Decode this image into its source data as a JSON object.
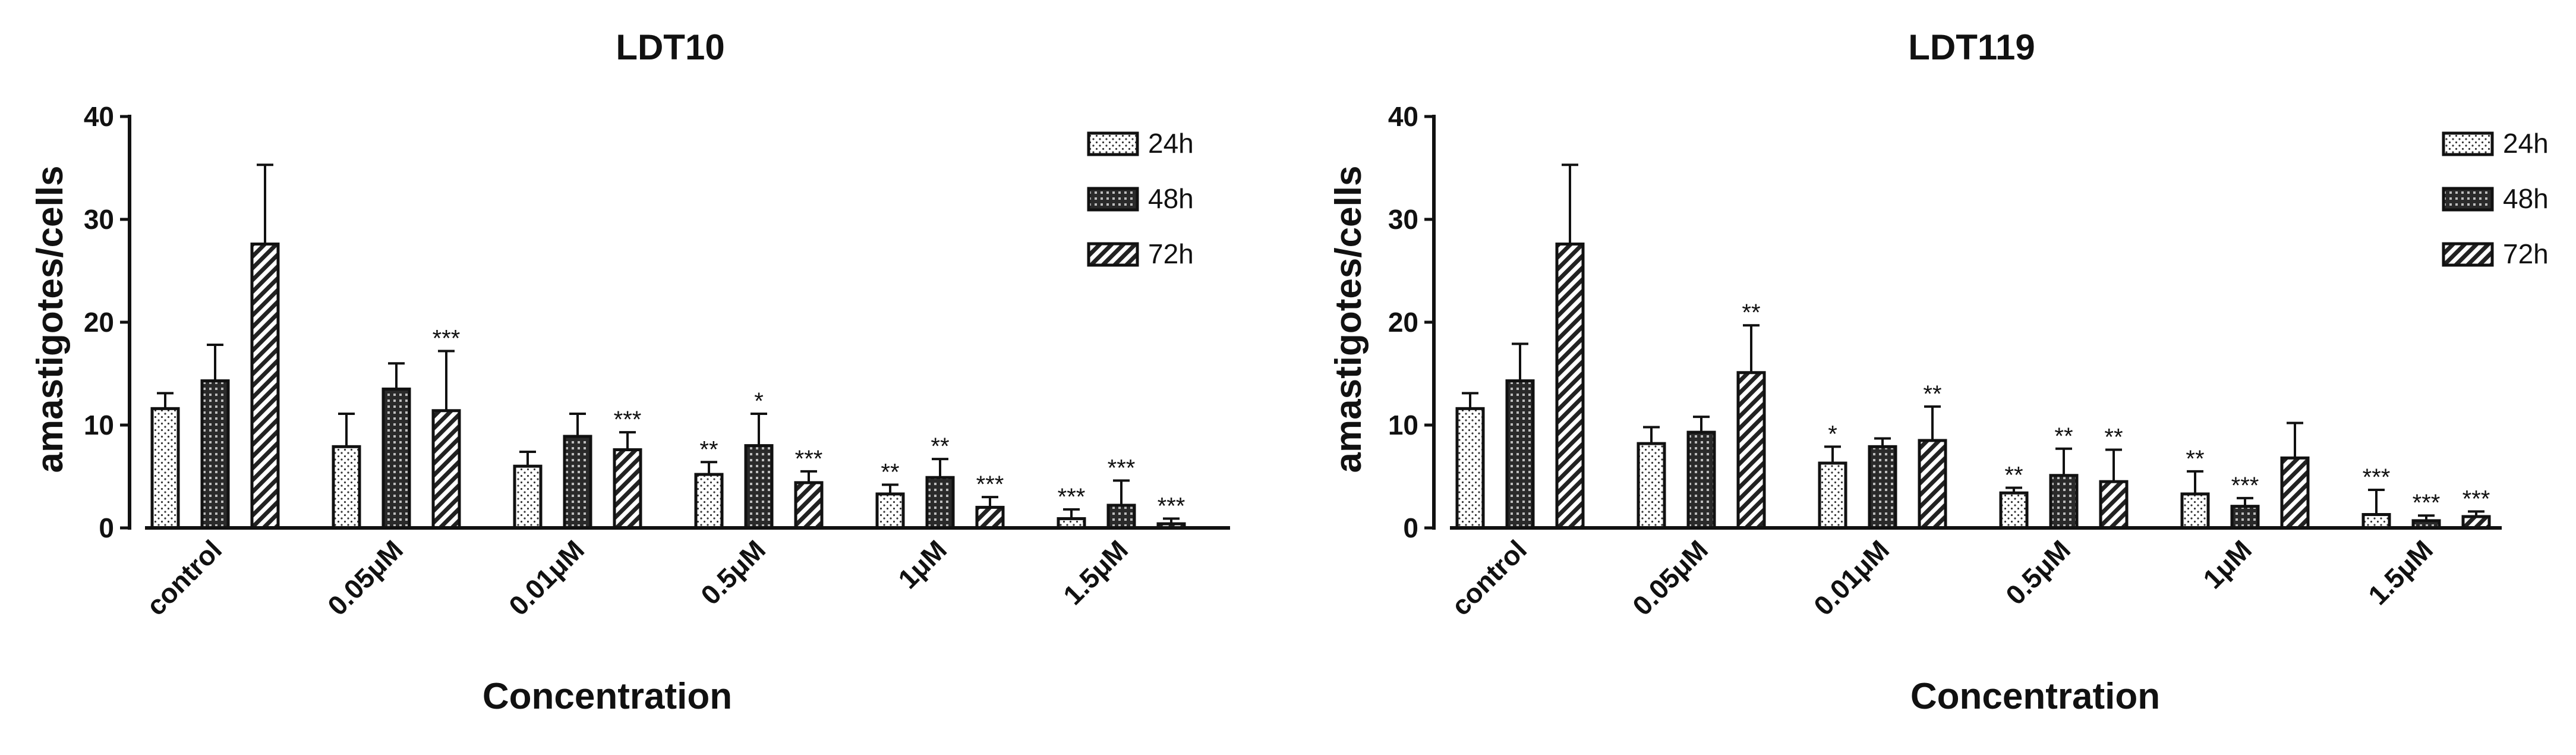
{
  "chart_data": [
    {
      "type": "bar",
      "title": "LDT10",
      "xlabel": "Concentration",
      "ylabel": "amastigotes/cells",
      "ylim": [
        0,
        40
      ],
      "yticks": [
        "0",
        "10",
        "20",
        "30",
        "40"
      ],
      "categories": [
        "control",
        "0.05μM",
        "0.01μM",
        "0.5μM",
        "1μM",
        "1.5μM"
      ],
      "legend_position": "top-right",
      "series": [
        {
          "name": "24h",
          "pattern": "dots",
          "values": [
            11.6,
            7.9,
            6.0,
            5.2,
            3.3,
            0.9
          ],
          "errors": [
            1.5,
            3.2,
            1.4,
            1.2,
            0.9,
            0.9
          ],
          "significance": [
            "",
            "",
            "",
            "**",
            "**",
            "***"
          ]
        },
        {
          "name": "48h",
          "pattern": "crosshatch",
          "values": [
            14.3,
            13.5,
            8.9,
            8.0,
            4.9,
            2.2
          ],
          "errors": [
            3.5,
            2.5,
            2.2,
            3.1,
            1.8,
            2.4
          ],
          "significance": [
            "",
            "",
            "",
            "*",
            "**",
            "***"
          ]
        },
        {
          "name": "72h",
          "pattern": "diagonal",
          "values": [
            27.6,
            11.4,
            7.6,
            4.4,
            2.0,
            0.4
          ],
          "errors": [
            7.7,
            5.8,
            1.7,
            1.1,
            1.0,
            0.5
          ],
          "significance": [
            "",
            "***",
            "***",
            "***",
            "***",
            "***"
          ]
        }
      ]
    },
    {
      "type": "bar",
      "title": "LDT119",
      "xlabel": "Concentration",
      "ylabel": "amastigotes/cells",
      "ylim": [
        0,
        40
      ],
      "yticks": [
        "0",
        "10",
        "20",
        "30",
        "40"
      ],
      "categories": [
        "control",
        "0.05μM",
        "0.01μM",
        "0.5μM",
        "1μM",
        "1.5μM"
      ],
      "legend_position": "top-right",
      "series": [
        {
          "name": "24h",
          "pattern": "dots",
          "values": [
            11.6,
            8.2,
            6.3,
            3.4,
            3.3,
            1.3
          ],
          "errors": [
            1.5,
            1.6,
            1.6,
            0.5,
            2.2,
            2.4
          ],
          "significance": [
            "",
            "",
            "*",
            "**",
            "**",
            "***"
          ]
        },
        {
          "name": "48h",
          "pattern": "crosshatch",
          "values": [
            14.3,
            9.3,
            7.9,
            5.1,
            2.1,
            0.7
          ],
          "errors": [
            3.6,
            1.5,
            0.8,
            2.6,
            0.8,
            0.5
          ],
          "significance": [
            "",
            "",
            "",
            "**",
            "***",
            "***"
          ]
        },
        {
          "name": "72h",
          "pattern": "diagonal",
          "values": [
            27.6,
            15.1,
            8.5,
            4.5,
            6.8,
            1.1
          ],
          "errors": [
            7.7,
            4.6,
            3.3,
            3.1,
            3.4,
            0.5
          ],
          "significance": [
            "",
            "**",
            "**",
            "**",
            "",
            "***"
          ]
        }
      ]
    }
  ]
}
